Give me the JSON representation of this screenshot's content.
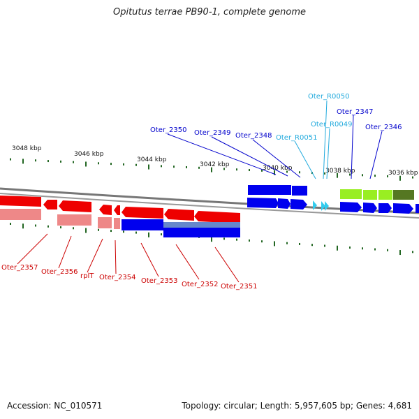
{
  "title": "Opitutus terrae PB90-1, complete genome",
  "footer": {
    "accession": "Accession: NC_010571",
    "topology": "Topology: circular; Length: 5,957,605 bp; Genes: 4,681"
  },
  "colors": {
    "forward_gene": "#0000ee",
    "reverse_gene": "#ee0000",
    "rna": "#33ccee",
    "green_gene": "#99ee22",
    "dark_green_gene": "#557722",
    "pink_cds": "#ee8888",
    "light_blue_cds": "#6688cc",
    "tick": "#226622"
  },
  "kbp_labels": [
    "3048 kbp",
    "3046 kbp",
    "3044 kbp",
    "3042 kbp",
    "3040 kbp",
    "3038 kbp",
    "3036 kbp"
  ],
  "top_labels": [
    "Oter_2350",
    "Oter_2349",
    "Oter_2348",
    "Oter_R0051",
    "Oter_R0050",
    "Oter_R0049",
    "Oter_2347",
    "Oter_2346"
  ],
  "bottom_labels": [
    "Oter_2357",
    "Oter_2356",
    "rplT",
    "Oter_2354",
    "Oter_2353",
    "Oter_2352",
    "Oter_2351"
  ]
}
